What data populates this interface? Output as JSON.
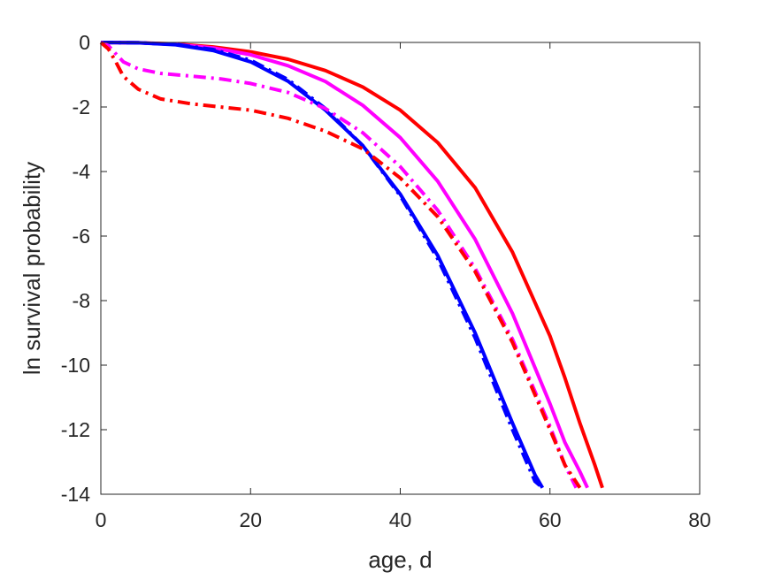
{
  "chart_data": {
    "type": "line",
    "title": "",
    "xlabel": "age, d",
    "ylabel": "ln survival probability",
    "xlim": [
      0,
      80
    ],
    "ylim": [
      -14,
      0
    ],
    "xticks": [
      "0",
      "20",
      "40",
      "60",
      "80"
    ],
    "yticks": [
      "0",
      "-2",
      "-4",
      "-6",
      "-8",
      "-10",
      "-12",
      "-14"
    ],
    "grid": false,
    "legend": "none",
    "series": [
      {
        "color": "#ff0000",
        "style": "solid",
        "x": [
          0,
          5,
          10,
          15,
          20,
          25,
          30,
          35,
          40,
          45,
          50,
          55,
          60,
          62,
          64,
          66,
          67
        ],
        "y": [
          0,
          -0.01,
          -0.05,
          -0.14,
          -0.29,
          -0.52,
          -0.87,
          -1.38,
          -2.1,
          -3.1,
          -4.5,
          -6.5,
          -9.1,
          -10.4,
          -11.8,
          -13.1,
          -13.8
        ]
      },
      {
        "color": "#ff00ff",
        "style": "solid",
        "x": [
          0,
          5,
          10,
          15,
          20,
          25,
          30,
          35,
          40,
          45,
          50,
          55,
          60,
          62,
          64,
          65
        ],
        "y": [
          0,
          -0.01,
          -0.06,
          -0.17,
          -0.38,
          -0.72,
          -1.21,
          -1.95,
          -2.95,
          -4.3,
          -6.1,
          -8.4,
          -11.2,
          -12.4,
          -13.3,
          -13.8
        ]
      },
      {
        "color": "#0000ff",
        "style": "solid",
        "x": [
          0,
          5,
          10,
          15,
          20,
          25,
          30,
          35,
          40,
          45,
          50,
          55,
          58,
          59
        ],
        "y": [
          0,
          -0.01,
          -0.07,
          -0.25,
          -0.6,
          -1.2,
          -2.1,
          -3.2,
          -4.7,
          -6.6,
          -9.0,
          -11.8,
          -13.4,
          -13.8
        ]
      },
      {
        "color": "#0000ff",
        "style": "dash-dot",
        "x": [
          0,
          5,
          10,
          15,
          20,
          25,
          30,
          35,
          40,
          45,
          50,
          55,
          58,
          59
        ],
        "y": [
          0,
          -0.01,
          -0.06,
          -0.22,
          -0.55,
          -1.15,
          -2.05,
          -3.2,
          -4.75,
          -6.7,
          -9.15,
          -12.0,
          -13.6,
          -13.8
        ]
      },
      {
        "color": "#ff00ff",
        "style": "dash-dot",
        "x": [
          0,
          1,
          2,
          3,
          5,
          8,
          12,
          16,
          20,
          25,
          30,
          35,
          40,
          45,
          50,
          55,
          60,
          62,
          63.5
        ],
        "y": [
          0,
          -0.1,
          -0.35,
          -0.6,
          -0.82,
          -0.96,
          -1.04,
          -1.13,
          -1.27,
          -1.55,
          -2.05,
          -2.8,
          -3.85,
          -5.2,
          -7.0,
          -9.2,
          -11.9,
          -13.1,
          -13.8
        ]
      },
      {
        "color": "#ff0000",
        "style": "dash-dot",
        "x": [
          0,
          1,
          2,
          3,
          5,
          8,
          12,
          16,
          20,
          25,
          30,
          35,
          40,
          45,
          50,
          55,
          60,
          62,
          64
        ],
        "y": [
          0,
          -0.2,
          -0.6,
          -1.05,
          -1.45,
          -1.75,
          -1.9,
          -2.0,
          -2.1,
          -2.35,
          -2.75,
          -3.3,
          -4.2,
          -5.4,
          -7.1,
          -9.3,
          -12.0,
          -13.1,
          -13.8
        ]
      }
    ]
  }
}
